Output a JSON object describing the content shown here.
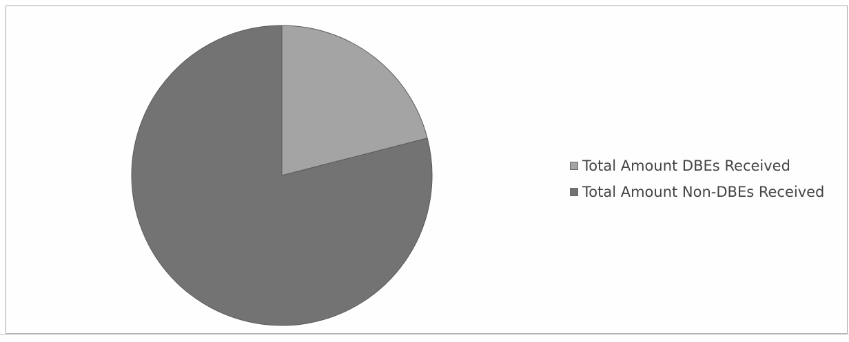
{
  "chart_data": {
    "type": "pie",
    "title": "",
    "slices": [
      {
        "label": "Total Amount DBEs Received",
        "value": 21,
        "color": "#a4a4a4"
      },
      {
        "label": "Total Amount Non-DBEs Received",
        "value": 79,
        "color": "#737373"
      }
    ],
    "legend_position": "right"
  }
}
